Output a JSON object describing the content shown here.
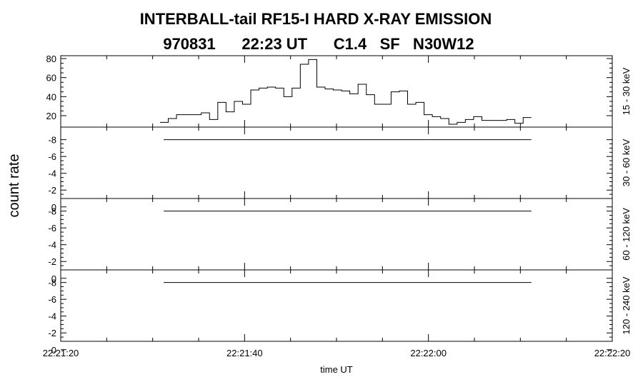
{
  "chart_data": {
    "type": "line",
    "title": "INTERBALL-tail  RF15-I  HARD  X-RAY  EMISSION",
    "subtitle": "970831      22:23 UT      C1.4   SF   N30W12",
    "ylabel": "count rate",
    "xlabel": "time UT",
    "x_ticks": [
      "22:21:20",
      "22:21:40",
      "22:22:00",
      "22:22:20"
    ],
    "x_range_seconds": [
      0,
      60
    ],
    "panels": [
      {
        "band": "15 - 30 keV",
        "ylim": [
          8,
          83
        ],
        "yticks": [
          20,
          40,
          60,
          80
        ],
        "step": {
          "x_start": 10.8,
          "x_end": 51.2,
          "values": [
            13,
            17,
            21,
            21,
            21,
            23,
            16,
            34,
            24,
            35,
            32,
            47,
            49,
            50,
            49,
            40,
            49,
            74,
            79,
            50,
            48,
            47,
            46,
            43,
            53,
            42,
            32,
            32,
            45,
            46,
            32,
            34,
            21,
            19,
            17,
            11,
            13,
            16,
            19,
            15,
            15,
            15,
            16,
            12,
            18
          ]
        }
      },
      {
        "band": "30 - 60 keV",
        "ylim": [
          -1,
          -9.5
        ],
        "yticks": [
          -8,
          -6,
          -4,
          -2,
          0
        ],
        "line": {
          "x_start": 11.2,
          "x_end": 51.2,
          "value": -8
        }
      },
      {
        "band": "60 - 120 keV",
        "ylim": [
          -1,
          -9.5
        ],
        "yticks": [
          -8,
          -6,
          -4,
          -2,
          0
        ],
        "line": {
          "x_start": 11.2,
          "x_end": 51.2,
          "value": -8
        }
      },
      {
        "band": "120 - 240 keV",
        "ylim": [
          -1,
          -9.5
        ],
        "yticks": [
          -8,
          -6,
          -4,
          -2,
          0
        ],
        "line": {
          "x_start": 11.2,
          "x_end": 51.2,
          "value": -8
        }
      }
    ],
    "grid": false
  }
}
